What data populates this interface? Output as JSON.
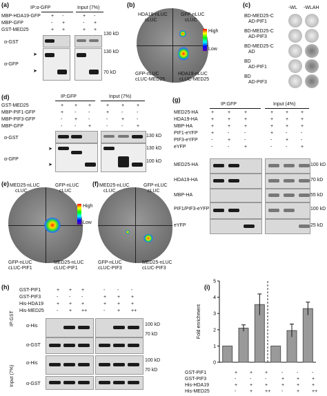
{
  "panels": {
    "a": {
      "letter": "(a)",
      "rows": [
        "MBP-HDA19-GFP",
        "MBP-GFP",
        "GST-MED25"
      ],
      "header_ip": "IP:α-GFP",
      "header_input": "Input (7%)",
      "signs": [
        [
          "+",
          "-",
          "+",
          "-"
        ],
        [
          "-",
          "+",
          "-",
          "+"
        ],
        [
          "+",
          "+",
          "+",
          "+"
        ]
      ],
      "blots": [
        "α-GST",
        "α-GFP"
      ],
      "markers": [
        "130 kD",
        "130 kD",
        "70 kD"
      ]
    },
    "b": {
      "letter": "(b)",
      "labels": [
        "HDA19-nLUC",
        "cLUC",
        "GFP-nLUC",
        "cLUC",
        "GFP-nLUC",
        "cLUC-MED25",
        "HDA19-nLUC",
        "cLUC-MED25"
      ],
      "scale_high": "High",
      "scale_low": "Low"
    },
    "c": {
      "letter": "(c)",
      "media": [
        "-WL",
        "-WLAH"
      ],
      "rows": [
        [
          "BD-MED25-C",
          "AD-PIF1"
        ],
        [
          "BD-MED25-C",
          "AD-PIF3"
        ],
        [
          "BD-MED25-C",
          "AD"
        ],
        [
          "BD",
          "AD-PIF1"
        ],
        [
          "BD",
          "AD-PIF3"
        ]
      ]
    },
    "d": {
      "letter": "(d)",
      "rows": [
        "GST-MED25",
        "MBP-PIF1-GFP",
        "MBP-PIF3-GFP",
        "MBP-GFP"
      ],
      "header_ip": "IP:GFP",
      "header_input": "Input (7%)",
      "signs": [
        [
          "+",
          "+",
          "+",
          "+",
          "+",
          "+"
        ],
        [
          "+",
          "-",
          "-",
          "+",
          "-",
          "-"
        ],
        [
          "-",
          "+",
          "-",
          "-",
          "+",
          "-"
        ],
        [
          "-",
          "-",
          "+",
          "-",
          "-",
          "+"
        ]
      ],
      "blots": [
        "α-GST",
        "α-GFP"
      ],
      "markers": [
        "130 kD",
        "130 kD",
        "100 kD"
      ]
    },
    "e": {
      "letter": "(e)",
      "labels": [
        "MED25-nLUC",
        "cLUC",
        "GFP-nLUC",
        "cLUC",
        "GFP-nLUC",
        "cLUC-PIF1",
        "MED25-nLUC",
        "cLUC-PIF1"
      ],
      "scale_high": "High",
      "scale_low": "Low"
    },
    "f": {
      "letter": "(f)",
      "labels": [
        "MED25-nLUC",
        "cLUC",
        "GFP-nLUC",
        "cLUC",
        "GFP-nLUC",
        "cLUC-PIF3",
        "MED25-nLUC",
        "cLUC-PIF3"
      ]
    },
    "g": {
      "letter": "(g)",
      "rows": [
        "MED25-HA",
        "HDA19-HA",
        "MBP-HA",
        "PIF1-eYFP",
        "PIF3-eYFP",
        "eYFP"
      ],
      "header_ip": "IP:GFP",
      "header_input": "Input (4%)",
      "signs": [
        [
          "+",
          "+",
          "+",
          "+",
          "+",
          "+"
        ],
        [
          "+",
          "+",
          "+",
          "+",
          "+",
          "+"
        ],
        [
          "+",
          "+",
          "+",
          "+",
          "+",
          "+"
        ],
        [
          "+",
          "-",
          "-",
          "+",
          "-",
          "-"
        ],
        [
          "-",
          "+",
          "-",
          "-",
          "+",
          "-"
        ],
        [
          "-",
          "-",
          "+",
          "-",
          "-",
          "+"
        ]
      ],
      "blots": [
        "MED25-HA",
        "HDA19-HA",
        "MBP-HA",
        "PIF1/PIF3-eYFP",
        "eYFP"
      ],
      "markers": [
        "100 kD",
        "70 kD",
        "55 kD",
        "100 kD",
        "25 kD"
      ]
    },
    "h": {
      "letter": "(h)",
      "rows": [
        "GST-PIF1",
        "GST-PIF3",
        "His-HDA19",
        "His-MED25"
      ],
      "signs": [
        [
          "+",
          "+",
          "+",
          "-",
          "-",
          "-"
        ],
        [
          "-",
          "-",
          "-",
          "+",
          "+",
          "+"
        ],
        [
          "+",
          "+",
          "+",
          "+",
          "+",
          "+"
        ],
        [
          "-",
          "+",
          "++",
          "-",
          "+",
          "++"
        ]
      ],
      "side_labels": [
        "IP:GST",
        "Input (7%)"
      ],
      "blots": [
        "α-His",
        "α-GST",
        "α-His",
        "α-GST"
      ],
      "markers": [
        "100 kD",
        "70 kD",
        "100 kD",
        "70 kD"
      ]
    },
    "i": {
      "letter": "(i)",
      "rows": [
        "GST-PIF1",
        "GST-PIF3",
        "His-HDA19",
        "His-MED25"
      ],
      "signs": [
        [
          "+",
          "+",
          "+",
          "-",
          "-",
          "-"
        ],
        [
          "-",
          "-",
          "-",
          "+",
          "+",
          "+"
        ],
        [
          "+",
          "+",
          "+",
          "+",
          "+",
          "+"
        ],
        [
          "-",
          "+",
          "++",
          "-",
          "+",
          "++"
        ]
      ]
    }
  },
  "chart_data": {
    "type": "bar",
    "ylabel": "Fold enrichment",
    "ylim": [
      0,
      5
    ],
    "yticks": [
      "0",
      "1",
      "2",
      "3",
      "4",
      "5"
    ],
    "values": [
      1.0,
      2.1,
      3.55,
      1.0,
      1.95,
      3.3
    ],
    "errors": [
      0.0,
      0.2,
      0.65,
      0.0,
      0.4,
      0.4
    ]
  }
}
